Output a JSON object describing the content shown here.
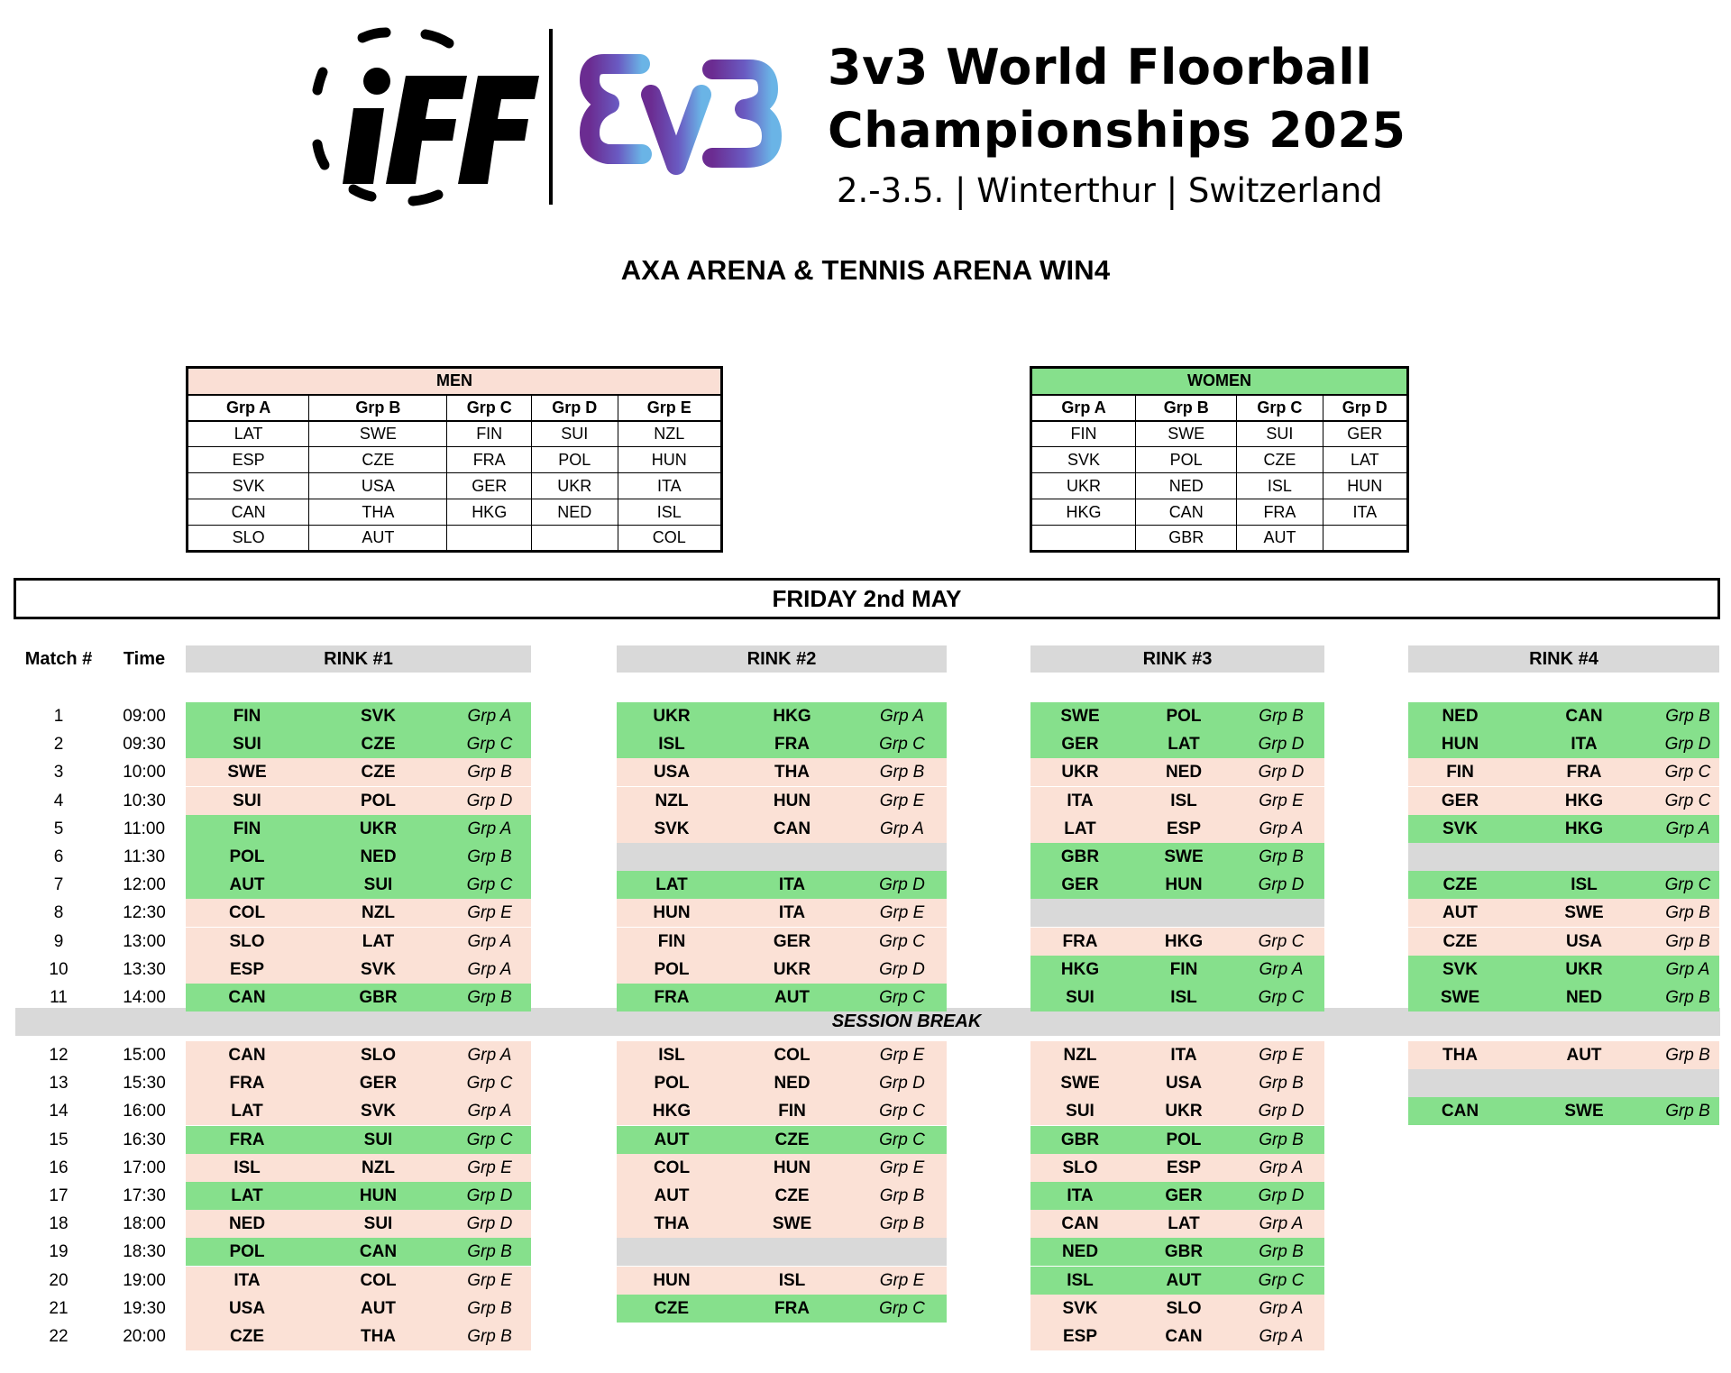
{
  "header": {
    "brand_logo": "IFF",
    "event_logo": "3v3",
    "title_line1": "3v3 World Floorball",
    "title_line2": "Championships 2025",
    "subtitle": "2.-3.5. | Winterthur | Switzerland"
  },
  "venue": "AXA ARENA & TENNIS ARENA WIN4",
  "men": {
    "title": "MEN",
    "groups": [
      "Grp A",
      "Grp B",
      "Grp C",
      "Grp D",
      "Grp E"
    ],
    "rows": [
      [
        "LAT",
        "SWE",
        "FIN",
        "SUI",
        "NZL"
      ],
      [
        "ESP",
        "CZE",
        "FRA",
        "POL",
        "HUN"
      ],
      [
        "SVK",
        "USA",
        "GER",
        "UKR",
        "ITA"
      ],
      [
        "CAN",
        "THA",
        "HKG",
        "NED",
        "ISL"
      ],
      [
        "SLO",
        "AUT",
        "",
        "",
        "COL"
      ]
    ]
  },
  "women": {
    "title": "WOMEN",
    "groups": [
      "Grp A",
      "Grp B",
      "Grp C",
      "Grp D"
    ],
    "rows": [
      [
        "FIN",
        "SWE",
        "SUI",
        "GER"
      ],
      [
        "SVK",
        "POL",
        "CZE",
        "LAT"
      ],
      [
        "UKR",
        "NED",
        "ISL",
        "HUN"
      ],
      [
        "HKG",
        "CAN",
        "FRA",
        "ITA"
      ],
      [
        "",
        "GBR",
        "AUT",
        ""
      ]
    ]
  },
  "day": "FRIDAY 2nd MAY",
  "schedule_headers": {
    "match": "Match #",
    "time": "Time",
    "rinks": [
      "RINK #1",
      "RINK #2",
      "RINK #3",
      "RINK #4"
    ]
  },
  "session_break": "SESSION BREAK",
  "colors": {
    "women": "#86e08c",
    "men": "#fbe1d6",
    "empty": "#d9d9d9"
  },
  "matches": [
    {
      "num": "1",
      "time": "09:00",
      "rinks": [
        [
          "FIN",
          "SVK",
          "Grp A",
          "g"
        ],
        [
          "UKR",
          "HKG",
          "Grp A",
          "g"
        ],
        [
          "SWE",
          "POL",
          "Grp B",
          "g"
        ],
        [
          "NED",
          "CAN",
          "Grp B",
          "g"
        ]
      ]
    },
    {
      "num": "2",
      "time": "09:30",
      "rinks": [
        [
          "SUI",
          "CZE",
          "Grp C",
          "g"
        ],
        [
          "ISL",
          "FRA",
          "Grp C",
          "g"
        ],
        [
          "GER",
          "LAT",
          "Grp D",
          "g"
        ],
        [
          "HUN",
          "ITA",
          "Grp D",
          "g"
        ]
      ]
    },
    {
      "num": "3",
      "time": "10:00",
      "rinks": [
        [
          "SWE",
          "CZE",
          "Grp B",
          "p"
        ],
        [
          "USA",
          "THA",
          "Grp B",
          "p"
        ],
        [
          "UKR",
          "NED",
          "Grp D",
          "p"
        ],
        [
          "FIN",
          "FRA",
          "Grp C",
          "p"
        ]
      ]
    },
    {
      "num": "4",
      "time": "10:30",
      "rinks": [
        [
          "SUI",
          "POL",
          "Grp D",
          "p"
        ],
        [
          "NZL",
          "HUN",
          "Grp E",
          "p"
        ],
        [
          "ITA",
          "ISL",
          "Grp E",
          "p"
        ],
        [
          "GER",
          "HKG",
          "Grp C",
          "p"
        ]
      ]
    },
    {
      "num": "5",
      "time": "11:00",
      "rinks": [
        [
          "FIN",
          "UKR",
          "Grp A",
          "g"
        ],
        [
          "SVK",
          "CAN",
          "Grp A",
          "p"
        ],
        [
          "LAT",
          "ESP",
          "Grp A",
          "p"
        ],
        [
          "SVK",
          "HKG",
          "Grp A",
          "g"
        ]
      ]
    },
    {
      "num": "6",
      "time": "11:30",
      "rinks": [
        [
          "POL",
          "NED",
          "Grp B",
          "g"
        ],
        [
          "",
          "",
          "",
          "e"
        ],
        [
          "GBR",
          "SWE",
          "Grp B",
          "g"
        ],
        [
          "",
          "",
          "",
          "e"
        ]
      ]
    },
    {
      "num": "7",
      "time": "12:00",
      "rinks": [
        [
          "AUT",
          "SUI",
          "Grp C",
          "g"
        ],
        [
          "LAT",
          "ITA",
          "Grp D",
          "g"
        ],
        [
          "GER",
          "HUN",
          "Grp D",
          "g"
        ],
        [
          "CZE",
          "ISL",
          "Grp C",
          "g"
        ]
      ]
    },
    {
      "num": "8",
      "time": "12:30",
      "rinks": [
        [
          "COL",
          "NZL",
          "Grp E",
          "p"
        ],
        [
          "HUN",
          "ITA",
          "Grp E",
          "p"
        ],
        [
          "",
          "",
          "",
          "e"
        ],
        [
          "AUT",
          "SWE",
          "Grp B",
          "p"
        ]
      ]
    },
    {
      "num": "9",
      "time": "13:00",
      "rinks": [
        [
          "SLO",
          "LAT",
          "Grp A",
          "p"
        ],
        [
          "FIN",
          "GER",
          "Grp C",
          "p"
        ],
        [
          "FRA",
          "HKG",
          "Grp C",
          "p"
        ],
        [
          "CZE",
          "USA",
          "Grp B",
          "p"
        ]
      ]
    },
    {
      "num": "10",
      "time": "13:30",
      "rinks": [
        [
          "ESP",
          "SVK",
          "Grp A",
          "p"
        ],
        [
          "POL",
          "UKR",
          "Grp D",
          "p"
        ],
        [
          "HKG",
          "FIN",
          "Grp A",
          "g"
        ],
        [
          "SVK",
          "UKR",
          "Grp A",
          "g"
        ]
      ]
    },
    {
      "num": "11",
      "time": "14:00",
      "rinks": [
        [
          "CAN",
          "GBR",
          "Grp B",
          "g"
        ],
        [
          "FRA",
          "AUT",
          "Grp C",
          "g"
        ],
        [
          "SUI",
          "ISL",
          "Grp C",
          "g"
        ],
        [
          "SWE",
          "NED",
          "Grp B",
          "g"
        ]
      ]
    },
    {
      "num": "12",
      "time": "15:00",
      "rinks": [
        [
          "CAN",
          "SLO",
          "Grp A",
          "p"
        ],
        [
          "ISL",
          "COL",
          "Grp E",
          "p"
        ],
        [
          "NZL",
          "ITA",
          "Grp E",
          "p"
        ],
        [
          "THA",
          "AUT",
          "Grp B",
          "p"
        ]
      ]
    },
    {
      "num": "13",
      "time": "15:30",
      "rinks": [
        [
          "FRA",
          "GER",
          "Grp C",
          "p"
        ],
        [
          "POL",
          "NED",
          "Grp D",
          "p"
        ],
        [
          "SWE",
          "USA",
          "Grp B",
          "p"
        ],
        [
          "",
          "",
          "",
          "e"
        ]
      ]
    },
    {
      "num": "14",
      "time": "16:00",
      "rinks": [
        [
          "LAT",
          "SVK",
          "Grp A",
          "p"
        ],
        [
          "HKG",
          "FIN",
          "Grp C",
          "p"
        ],
        [
          "SUI",
          "UKR",
          "Grp D",
          "p"
        ],
        [
          "CAN",
          "SWE",
          "Grp B",
          "g"
        ]
      ]
    },
    {
      "num": "15",
      "time": "16:30",
      "rinks": [
        [
          "FRA",
          "SUI",
          "Grp C",
          "g"
        ],
        [
          "AUT",
          "CZE",
          "Grp C",
          "g"
        ],
        [
          "GBR",
          "POL",
          "Grp B",
          "g"
        ],
        null
      ]
    },
    {
      "num": "16",
      "time": "17:00",
      "rinks": [
        [
          "ISL",
          "NZL",
          "Grp E",
          "p"
        ],
        [
          "COL",
          "HUN",
          "Grp E",
          "p"
        ],
        [
          "SLO",
          "ESP",
          "Grp A",
          "p"
        ],
        null
      ]
    },
    {
      "num": "17",
      "time": "17:30",
      "rinks": [
        [
          "LAT",
          "HUN",
          "Grp D",
          "g"
        ],
        [
          "AUT",
          "CZE",
          "Grp B",
          "p"
        ],
        [
          "ITA",
          "GER",
          "Grp D",
          "g"
        ],
        null
      ]
    },
    {
      "num": "18",
      "time": "18:00",
      "rinks": [
        [
          "NED",
          "SUI",
          "Grp D",
          "p"
        ],
        [
          "THA",
          "SWE",
          "Grp B",
          "p"
        ],
        [
          "CAN",
          "LAT",
          "Grp A",
          "p"
        ],
        null
      ]
    },
    {
      "num": "19",
      "time": "18:30",
      "rinks": [
        [
          "POL",
          "CAN",
          "Grp B",
          "g"
        ],
        [
          "",
          "",
          "",
          "e"
        ],
        [
          "NED",
          "GBR",
          "Grp B",
          "g"
        ],
        null
      ]
    },
    {
      "num": "20",
      "time": "19:00",
      "rinks": [
        [
          "ITA",
          "COL",
          "Grp E",
          "p"
        ],
        [
          "HUN",
          "ISL",
          "Grp E",
          "p"
        ],
        [
          "ISL",
          "AUT",
          "Grp C",
          "g"
        ],
        null
      ]
    },
    {
      "num": "21",
      "time": "19:30",
      "rinks": [
        [
          "USA",
          "AUT",
          "Grp B",
          "p"
        ],
        [
          "CZE",
          "FRA",
          "Grp C",
          "g"
        ],
        [
          "SVK",
          "SLO",
          "Grp A",
          "p"
        ],
        null
      ]
    },
    {
      "num": "22",
      "time": "20:00",
      "rinks": [
        [
          "CZE",
          "THA",
          "Grp B",
          "p"
        ],
        null,
        [
          "ESP",
          "CAN",
          "Grp A",
          "p"
        ],
        null
      ]
    }
  ]
}
